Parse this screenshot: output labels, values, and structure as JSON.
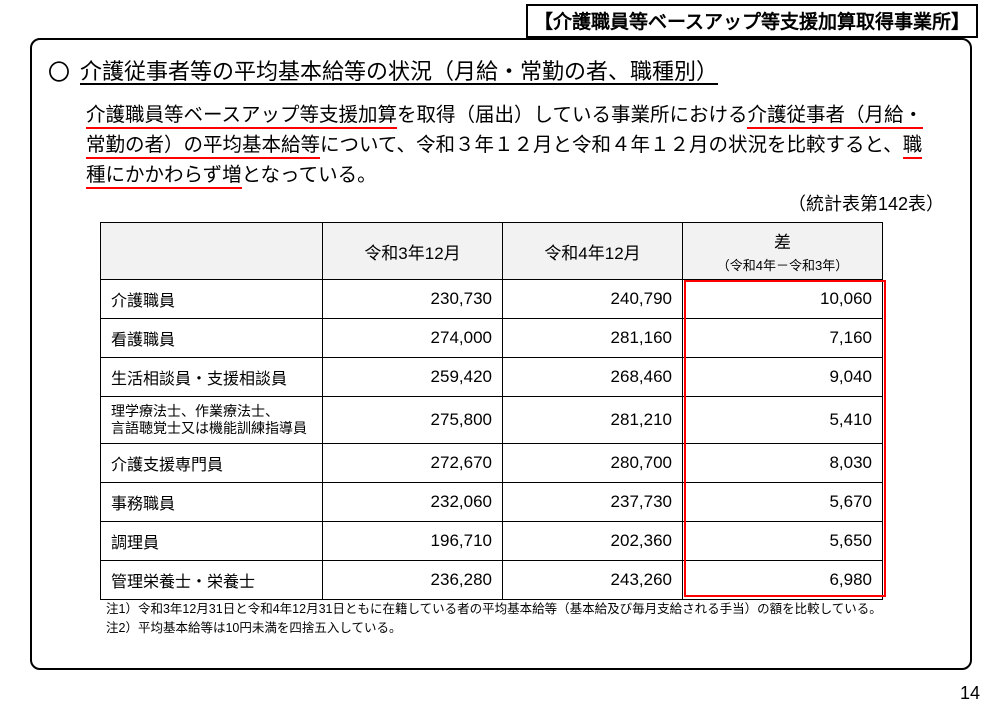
{
  "banner": "【介護職員等ベースアップ等支援加算取得事業所】",
  "bullet": "〇",
  "title": "介護従事者等の平均基本給等の状況（月給・常勤の者、職種別）",
  "body": {
    "seg1_u": "介護職員等ベースアップ等支援加算",
    "seg2": "を取得（届出）している事業所における",
    "seg3_u": "介護従事者（月給・常勤の者）の平均基本給等",
    "seg4": "について、令和３年１２月と令和４年１２月の状況を比較すると、",
    "seg5_u": "職種にかかわらず増",
    "seg6": "となっている。"
  },
  "table_ref": "（統計表第142表）",
  "table": {
    "header": {
      "blank": "",
      "col_a": "令和3年12月",
      "col_b": "令和4年12月",
      "col_c_main": "差",
      "col_c_sub": "（令和4年－令和3年）"
    },
    "rows": [
      {
        "label": "介護職員",
        "a": "230,730",
        "b": "240,790",
        "c": "10,060",
        "two_line": false
      },
      {
        "label": "看護職員",
        "a": "274,000",
        "b": "281,160",
        "c": "7,160",
        "two_line": false
      },
      {
        "label": "生活相談員・支援相談員",
        "a": "259,420",
        "b": "268,460",
        "c": "9,040",
        "two_line": false
      },
      {
        "label": "理学療法士、作業療法士、\n言語聴覚士又は機能訓練指導員",
        "a": "275,800",
        "b": "281,210",
        "c": "5,410",
        "two_line": true
      },
      {
        "label": "介護支援専門員",
        "a": "272,670",
        "b": "280,700",
        "c": "8,030",
        "two_line": false
      },
      {
        "label": "事務職員",
        "a": "232,060",
        "b": "237,730",
        "c": "5,670",
        "two_line": false
      },
      {
        "label": "調理員",
        "a": "196,710",
        "b": "202,360",
        "c": "5,650",
        "two_line": false
      },
      {
        "label": "管理栄養士・栄養士",
        "a": "236,280",
        "b": "243,260",
        "c": "6,980",
        "two_line": false
      }
    ],
    "highlight_color": "#ff0000",
    "header_bg": "#f2f2f2"
  },
  "notes": {
    "n1": "注1）令和3年12月31日と令和4年12月31日ともに在籍している者の平均基本給等（基本給及び毎月支給される手当）の額を比較している。",
    "n2": "注2）平均基本給等は10円未満を四捨五入している。"
  },
  "page_number": "14"
}
